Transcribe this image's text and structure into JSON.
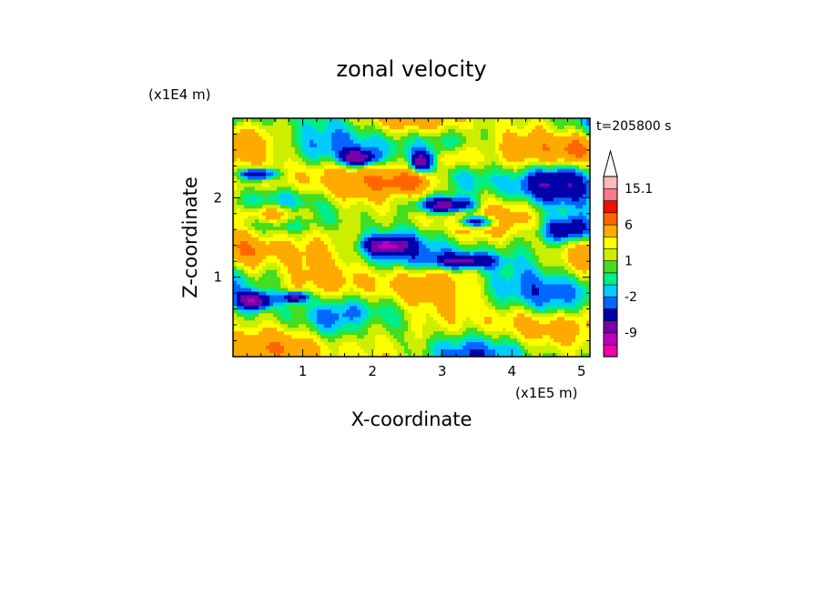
{
  "chart_data": {
    "type": "heatmap",
    "title": "zonal velocity",
    "xlabel": "X-coordinate",
    "ylabel": "Z-coordinate",
    "x_unit": "(x1E5 m)",
    "y_unit": "(x1E4 m)",
    "time_label": "t=205800 s",
    "xlim": [
      0.0,
      5.12
    ],
    "ylim": [
      0.0,
      3.0
    ],
    "x_ticks": [
      1,
      2,
      3,
      4,
      5
    ],
    "y_ticks": [
      1,
      2
    ],
    "colorbar": {
      "levels": [
        -15,
        -12,
        -9,
        -6,
        -3,
        -2,
        -1,
        0,
        1,
        2,
        3,
        6,
        9,
        12,
        15.1
      ],
      "colors": [
        "#ee00aa",
        "#bb00bb",
        "#7700aa",
        "#0000aa",
        "#0066ff",
        "#00ccff",
        "#00ee88",
        "#44dd22",
        "#ccee00",
        "#ffff00",
        "#ffaa00",
        "#ff6600",
        "#ee1100",
        "#ff7788",
        "#ffbbbb"
      ],
      "tick_labels": [
        "15.1",
        "6",
        "1",
        "-2",
        "-9"
      ],
      "tick_values": [
        15.1,
        6,
        1,
        -2,
        -9
      ],
      "extend": "max"
    },
    "field_description": "Turbulent zonal velocity field; predominantly weak positive (orange/yellow) and weak negative (green/cyan) values with strong negative (blue) patches around z=0.7, 1.3, 1.8, 2.5 and along a descending band x≈2.8–3.5."
  }
}
